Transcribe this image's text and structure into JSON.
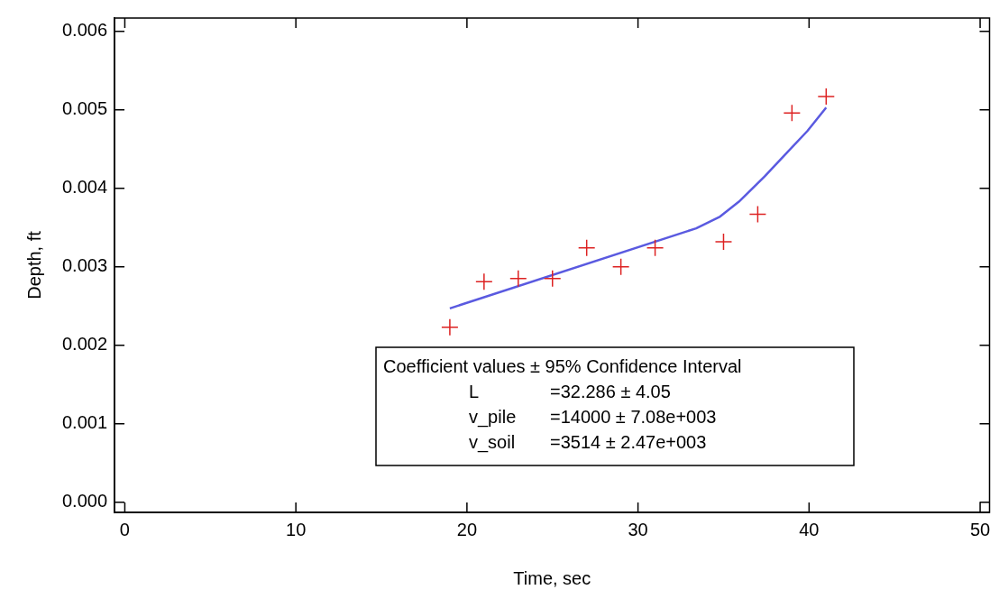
{
  "chart_data": {
    "type": "scatter",
    "xlabel": "Time, sec",
    "ylabel": "Depth, ft",
    "xlim": [
      -0.6,
      50.55
    ],
    "xticks": [
      0,
      10,
      20,
      30,
      40,
      50
    ],
    "ylim": [
      -0.00013,
      0.00617
    ],
    "yticks": [
      {
        "value": 0,
        "label": "0.000"
      },
      {
        "value": 0.001,
        "label": "0.001"
      },
      {
        "value": 0.002,
        "label": "0.002"
      },
      {
        "value": 0.003,
        "label": "0.003"
      },
      {
        "value": 0.004,
        "label": "0.004"
      },
      {
        "value": 0.005,
        "label": "0.005"
      },
      {
        "value": 0.006,
        "label": "0.006"
      }
    ],
    "grid": false,
    "legend": false,
    "series": [
      {
        "type": "scatter",
        "color": "#dd2222",
        "marker": "cross",
        "x": [
          19,
          21,
          23,
          25,
          27,
          29,
          31,
          35,
          37,
          39,
          41
        ],
        "values": [
          0.00223,
          0.00281,
          0.00285,
          0.00285,
          0.00324,
          0.003,
          0.00324,
          0.00332,
          0.00367,
          0.00496,
          0.00517
        ]
      },
      {
        "type": "line",
        "color": "#5a5ae0",
        "marker": "none",
        "line_style": "solid",
        "x": [
          19,
          33.4,
          34.8,
          35.9,
          37.4,
          38.6,
          39.9,
          41
        ],
        "values": [
          0.00247,
          0.00349,
          0.00364,
          0.00383,
          0.00415,
          0.00443,
          0.00473,
          0.00503
        ]
      }
    ],
    "annotations": [
      "Coefficient values ± 95% Confidence Interval",
      "L",
      "=32.286 ± 4.05",
      "v_pile",
      "=14000 ± 7.08e+003",
      "v_soil",
      "=3514 ± 2.47e+003"
    ]
  }
}
